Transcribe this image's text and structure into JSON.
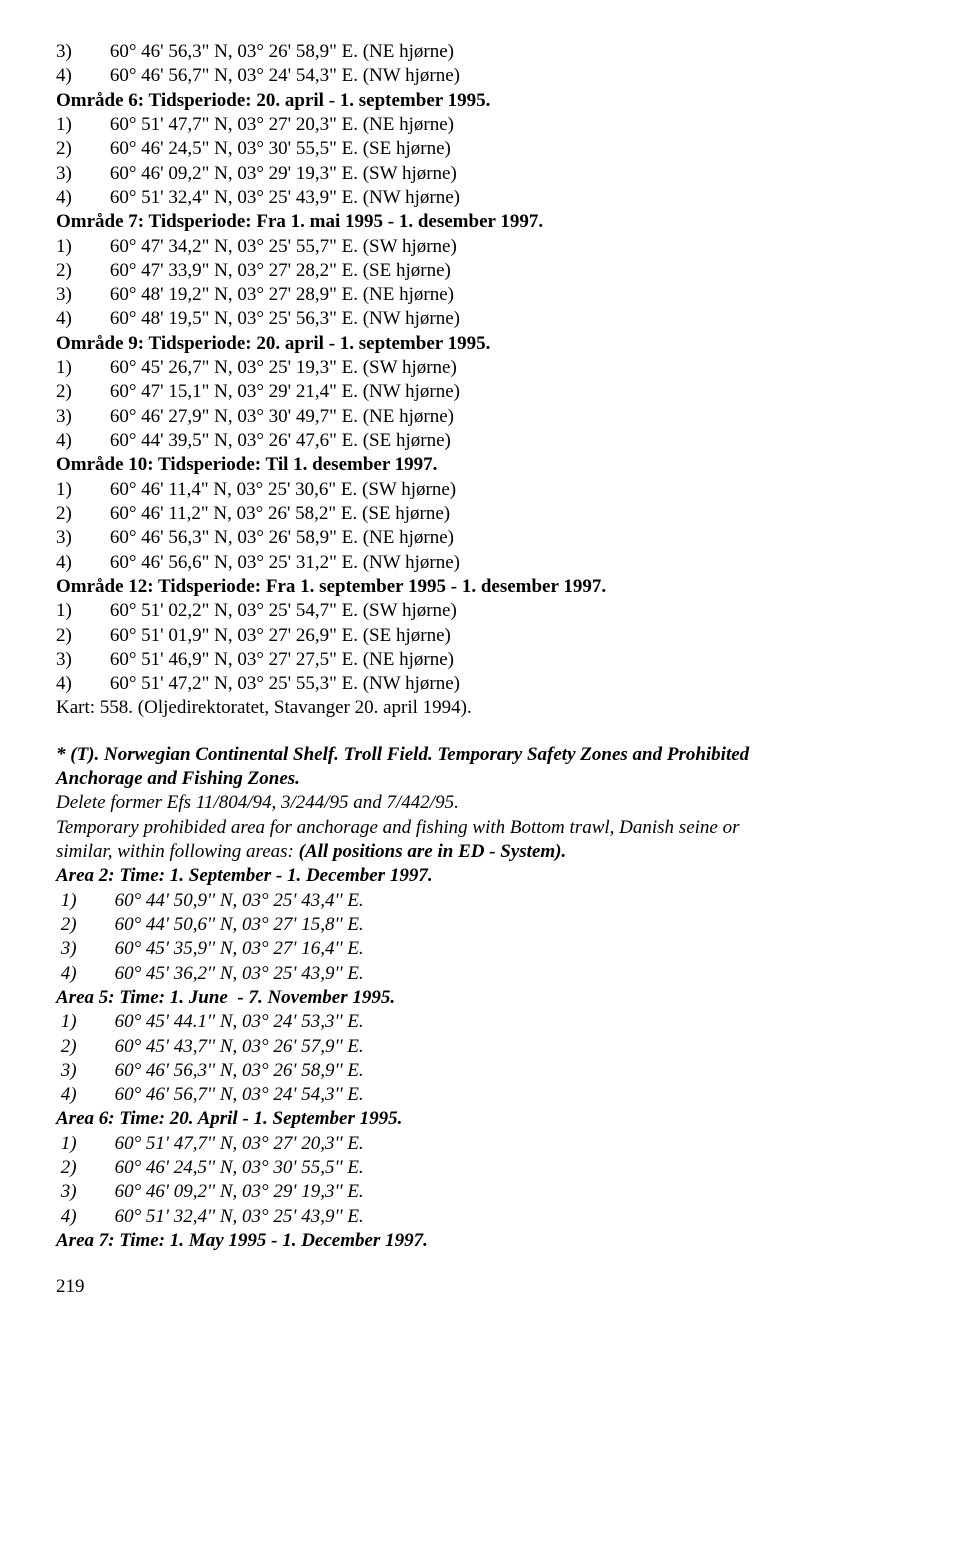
{
  "omr6_coords": [
    {
      "n": "3)",
      "t": "60° 46' 56,3\" N, 03° 26' 58,9\" E. (NE hjørne)"
    },
    {
      "n": "4)",
      "t": "60° 46' 56,7\" N, 03° 24' 54,3\" E. (NW hjørne)"
    }
  ],
  "omr6_header": "Område 6: Tidsperiode: 20. april - 1. september 1995.",
  "omr6_list": [
    {
      "n": "1)",
      "t": "60° 51' 47,7\" N, 03° 27' 20,3\" E. (NE hjørne)"
    },
    {
      "n": "2)",
      "t": "60° 46' 24,5\" N, 03° 30' 55,5\" E. (SE hjørne)"
    },
    {
      "n": "3)",
      "t": "60° 46' 09,2\" N, 03° 29' 19,3\" E. (SW hjørne)"
    },
    {
      "n": "4)",
      "t": "60° 51' 32,4\" N, 03° 25' 43,9\" E. (NW hjørne)"
    }
  ],
  "omr7_header": "Område 7: Tidsperiode: Fra 1. mai 1995 - 1. desember 1997.",
  "omr7_list": [
    {
      "n": "1)",
      "t": "60° 47' 34,2\" N, 03° 25' 55,7\" E. (SW hjørne)"
    },
    {
      "n": "2)",
      "t": "60° 47' 33,9\" N, 03° 27' 28,2\" E. (SE hjørne)"
    },
    {
      "n": "3)",
      "t": "60° 48' 19,2\" N, 03° 27' 28,9\" E. (NE hjørne)"
    },
    {
      "n": "4)",
      "t": "60° 48' 19,5\" N, 03° 25' 56,3\" E. (NW hjørne)"
    }
  ],
  "omr9_header": "Område 9: Tidsperiode: 20. april - 1. september 1995.",
  "omr9_list": [
    {
      "n": "1)",
      "t": "60° 45' 26,7\" N, 03° 25' 19,3\" E. (SW hjørne)"
    },
    {
      "n": "2)",
      "t": "60° 47' 15,1\" N, 03° 29' 21,4\" E. (NW hjørne)"
    },
    {
      "n": "3)",
      "t": "60° 46' 27,9\" N, 03° 30' 49,7\" E. (NE hjørne)"
    },
    {
      "n": "4)",
      "t": "60° 44' 39,5\" N, 03° 26' 47,6\" E. (SE hjørne)"
    }
  ],
  "omr10_header": "Område 10: Tidsperiode: Til 1. desember 1997.",
  "omr10_list": [
    {
      "n": "1)",
      "t": "60° 46' 11,4\" N, 03° 25' 30,6\" E. (SW hjørne)"
    },
    {
      "n": "2)",
      "t": "60° 46' 11,2\" N, 03° 26' 58,2\" E. (SE hjørne)"
    },
    {
      "n": "3)",
      "t": "60° 46' 56,3\" N, 03° 26' 58,9\" E. (NE hjørne)"
    },
    {
      "n": "4)",
      "t": "60° 46' 56,6\" N, 03° 25' 31,2\" E. (NW hjørne)"
    }
  ],
  "omr12_header": "Område 12: Tidsperiode: Fra 1. september 1995 - 1. desember 1997.",
  "omr12_list": [
    {
      "n": "1)",
      "t": "60° 51' 02,2\" N, 03° 25' 54,7\" E. (SW hjørne)"
    },
    {
      "n": "2)",
      "t": "60° 51' 01,9\" N, 03° 27' 26,9\" E. (SE hjørne)"
    },
    {
      "n": "3)",
      "t": "60° 51' 46,9\" N, 03° 27' 27,5\" E. (NE hjørne)"
    },
    {
      "n": "4)",
      "t": "60° 51' 47,2\" N, 03° 25' 55,3\" E. (NW hjørne)"
    }
  ],
  "kart": "Kart: 558. (Oljedirektoratet, Stavanger 20. april 1994).",
  "eng_title1": "* (T). Norwegian Continental Shelf. Troll Field. Temporary Safety Zones and Prohibited",
  "eng_title2": "Anchorage and Fishing Zones.",
  "eng_delete": "Delete former Efs 11/804/94, 3/244/95 and 7/442/95.",
  "eng_para1": "Temporary prohibided area for anchorage and fishing with Bottom trawl, Danish seine or",
  "eng_para2a": "similar, within following areas: ",
  "eng_para2b": "(All positions are in ED - System).",
  "area2_header": "Area 2: Time: 1. September - 1. December 1997.",
  "area2_list": [
    {
      "n": "1)",
      "t": "60° 44' 50,9'' N, 03° 25' 43,4'' E."
    },
    {
      "n": "2)",
      "t": "60° 44' 50,6'' N, 03° 27' 15,8'' E."
    },
    {
      "n": "3)",
      "t": "60° 45' 35,9'' N, 03° 27' 16,4'' E."
    },
    {
      "n": "4)",
      "t": "60° 45' 36,2'' N, 03° 25' 43,9'' E."
    }
  ],
  "area5_header": "Area 5: Time: 1. June  - 7. November 1995.",
  "area5_list": [
    {
      "n": "1)",
      "t": "60° 45' 44.1'' N, 03° 24' 53,3'' E."
    },
    {
      "n": "2)",
      "t": "60° 45' 43,7'' N, 03° 26' 57,9'' E."
    },
    {
      "n": "3)",
      "t": "60° 46' 56,3'' N, 03° 26' 58,9'' E."
    },
    {
      "n": "4)",
      "t": "60° 46' 56,7'' N, 03° 24' 54,3'' E."
    }
  ],
  "area6_header": "Area 6: Time: 20. April - 1. September 1995.",
  "area6_list": [
    {
      "n": "1)",
      "t": "60° 51' 47,7'' N, 03° 27' 20,3'' E."
    },
    {
      "n": "2)",
      "t": "60° 46' 24,5'' N, 03° 30' 55,5'' E."
    },
    {
      "n": "3)",
      "t": "60° 46' 09,2'' N, 03° 29' 19,3'' E."
    },
    {
      "n": "4)",
      "t": "60° 51' 32,4'' N, 03° 25' 43,9'' E."
    }
  ],
  "area7_header": "Area 7: Time: 1. May 1995 - 1. December 1997.",
  "page_num": "219"
}
